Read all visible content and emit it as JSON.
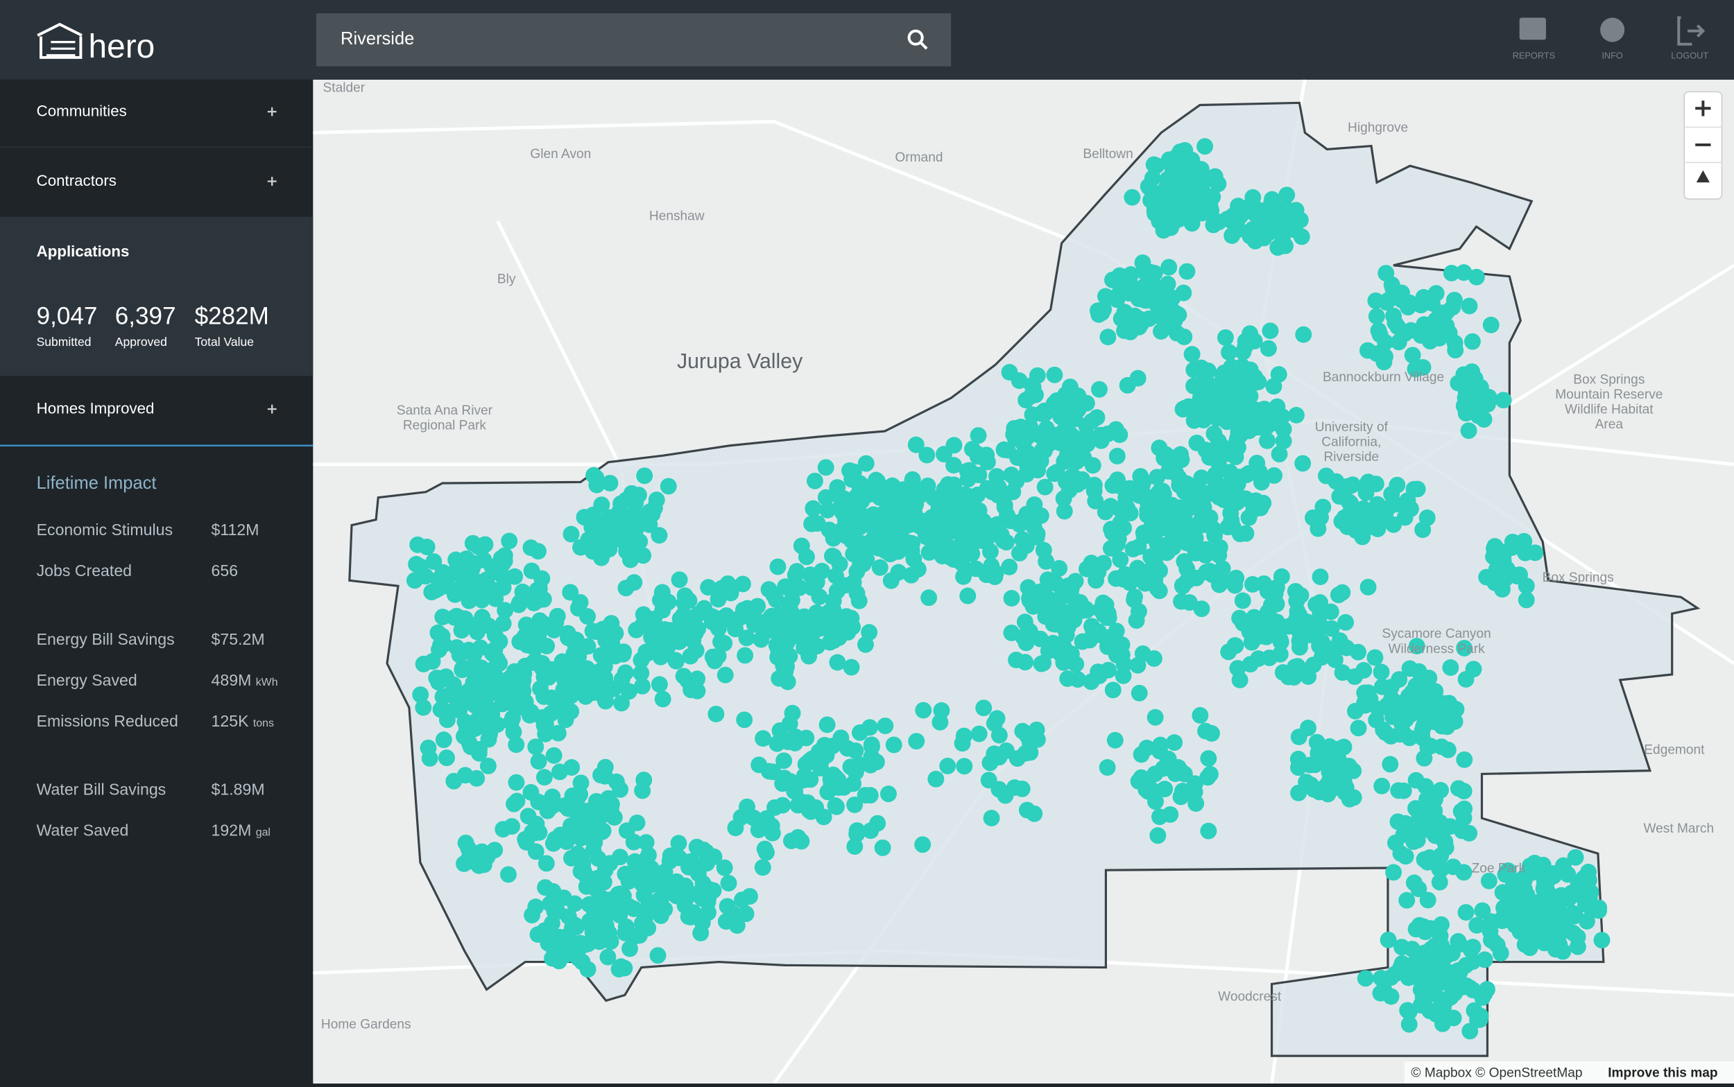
{
  "header": {
    "logo": "hero",
    "search": "Riverside",
    "buttons": [
      "REPORTS",
      "INFO",
      "LOGOUT"
    ]
  },
  "sidebar": {
    "sections": [
      "Communities",
      "Contractors"
    ],
    "applications": {
      "title": "Applications",
      "stats": [
        {
          "value": "9,047",
          "label": "Submitted"
        },
        {
          "value": "6,397",
          "label": "Approved"
        },
        {
          "value": "$282M",
          "label": "Total Value"
        }
      ]
    },
    "homes_improved": "Homes Improved",
    "impact": {
      "title": "Lifetime Impact",
      "rows": [
        {
          "label": "Economic Stimulus",
          "value": "$112M"
        },
        {
          "label": "Jobs Created",
          "value": "656"
        },
        {
          "label": "Energy Bill Savings",
          "value": "$75.2M"
        },
        {
          "label": "Energy Saved",
          "value": "489M",
          "unit": "kWh"
        },
        {
          "label": "Emissions Reduced",
          "value": "125K",
          "unit": "tons"
        },
        {
          "label": "Water Bill Savings",
          "value": "$1.89M"
        },
        {
          "label": "Water Saved",
          "value": "192M",
          "unit": "gal"
        }
      ]
    }
  },
  "map": {
    "labels": [
      {
        "lines": [
          "Stalder"
        ]
      },
      {
        "lines": [
          "Glen Avon"
        ]
      },
      {
        "lines": [
          "Ormand"
        ]
      },
      {
        "lines": [
          "Belltown"
        ]
      },
      {
        "lines": [
          "Highgrove"
        ]
      },
      {
        "lines": [
          "Henshaw"
        ]
      },
      {
        "lines": [
          "Bly"
        ]
      },
      {
        "lines": [
          "Jurupa Valley"
        ]
      },
      {
        "lines": [
          "Santa Ana River",
          "Regional Park"
        ]
      },
      {
        "lines": [
          "Box Springs",
          "Mountain Reserve",
          "Wildlife Habitat",
          "Area"
        ]
      },
      {
        "lines": [
          "Bannockburn Village"
        ]
      },
      {
        "lines": [
          "University of",
          "California,",
          "Riverside"
        ]
      },
      {
        "lines": [
          "Sycamore Canyon",
          "Wilderness Park"
        ]
      },
      {
        "lines": [
          "Edgemont"
        ]
      },
      {
        "lines": [
          "West March"
        ]
      },
      {
        "lines": [
          "Woodcrest"
        ]
      },
      {
        "lines": [
          "Home Gardens"
        ]
      },
      {
        "lines": [
          "Zoe Park"
        ]
      },
      {
        "lines": [
          "Box Springs"
        ]
      }
    ],
    "attribution": "© Mapbox © OpenStreetMap",
    "improve": "Improve this map"
  }
}
